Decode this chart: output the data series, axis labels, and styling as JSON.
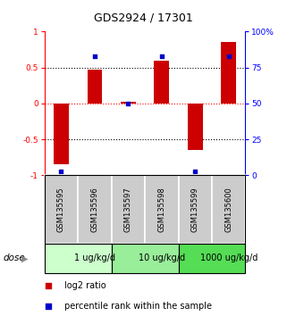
{
  "title": "GDS2924 / 17301",
  "samples": [
    "GSM135595",
    "GSM135596",
    "GSM135597",
    "GSM135598",
    "GSM135599",
    "GSM135600"
  ],
  "log2_ratio": [
    -0.85,
    0.47,
    0.02,
    0.6,
    -0.65,
    0.85
  ],
  "percentile_rank": [
    3,
    83,
    50,
    83,
    3,
    83
  ],
  "bar_color": "#cc0000",
  "dot_color": "#0000cc",
  "ylim_left": [
    -1,
    1
  ],
  "ylim_right": [
    0,
    100
  ],
  "yticks_left": [
    -1,
    -0.5,
    0,
    0.5,
    1
  ],
  "yticks_right": [
    0,
    25,
    50,
    75,
    100
  ],
  "ytick_labels_left": [
    "-1",
    "-0.5",
    "0",
    "0.5",
    "1"
  ],
  "ytick_labels_right": [
    "0",
    "25",
    "50",
    "75",
    "100%"
  ],
  "dose_groups": [
    {
      "label": "1 ug/kg/d",
      "start": 0,
      "end": 2,
      "color": "#ccffcc"
    },
    {
      "label": "10 ug/kg/d",
      "start": 2,
      "end": 4,
      "color": "#99ee99"
    },
    {
      "label": "1000 ug/kg/d",
      "start": 4,
      "end": 6,
      "color": "#55dd55"
    }
  ],
  "dose_label": "dose",
  "legend_bar_label": "log2 ratio",
  "legend_dot_label": "percentile rank within the sample",
  "bg_color": "white",
  "sample_label_area_color": "#cccccc",
  "bar_width": 0.45
}
